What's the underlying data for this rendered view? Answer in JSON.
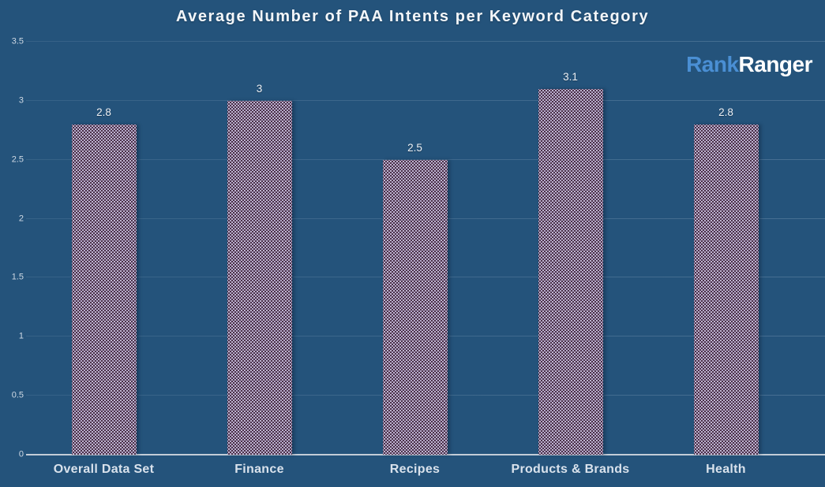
{
  "colors": {
    "background": "#24537B",
    "bar_fill": "#4A3048",
    "bar_dot": "#D6CFEC",
    "logo_accent": "#4A8FD4",
    "axis_line": "#C3CDD8",
    "text": "#F3F6F9"
  },
  "logo": {
    "part1": "Rank",
    "part2": "Ranger"
  },
  "chart_data": {
    "type": "bar",
    "title": "Average Number of PAA Intents per Keyword Category",
    "xlabel": "",
    "ylabel": "",
    "categories": [
      "Overall Data Set",
      "Finance",
      "Recipes",
      "Products & Brands",
      "Health"
    ],
    "values": [
      2.8,
      3,
      2.5,
      3.1,
      2.8
    ],
    "value_labels": [
      "2.8",
      "3",
      "2.5",
      "3.1",
      "2.8"
    ],
    "ylim": [
      0,
      3.5
    ],
    "yticks": [
      {
        "value": 0,
        "label": "0"
      },
      {
        "value": 0.5,
        "label": "0.5"
      },
      {
        "value": 1,
        "label": "1"
      },
      {
        "value": 1.5,
        "label": "1.5"
      },
      {
        "value": 2,
        "label": "2"
      },
      {
        "value": 2.5,
        "label": "2.5"
      },
      {
        "value": 3,
        "label": "3"
      },
      {
        "value": 3.5,
        "label": "3.5"
      }
    ],
    "grid": true,
    "legend": "none"
  }
}
